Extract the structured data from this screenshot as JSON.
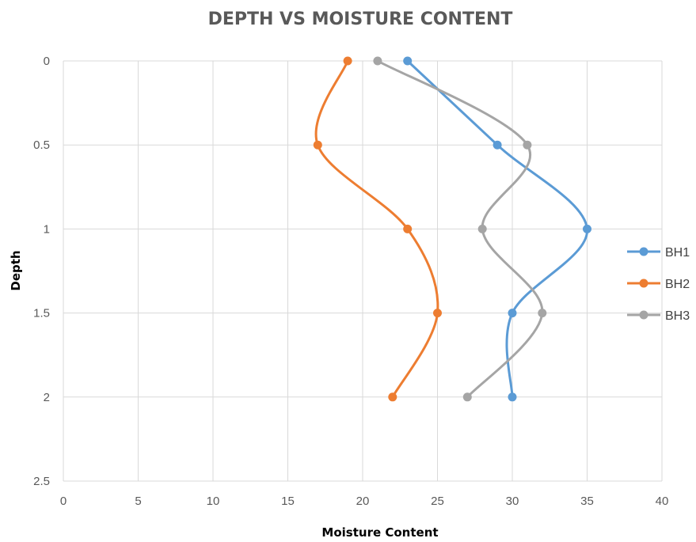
{
  "chart_data": {
    "type": "scatter",
    "title": "DEPTH VS MOISTURE CONTENT",
    "xlabel": "Moisture Content",
    "ylabel": "Depth",
    "xlim": [
      0,
      40
    ],
    "ylim": [
      0,
      2.5
    ],
    "y_inverted": true,
    "x_ticks": [
      "0",
      "5",
      "10",
      "15",
      "20",
      "25",
      "30",
      "35",
      "40"
    ],
    "y_ticks": [
      "0",
      "0.5",
      "1",
      "1.5",
      "2",
      "2.5"
    ],
    "grid": true,
    "smooth_lines": true,
    "legend_position": "right",
    "series": [
      {
        "name": "BH1",
        "color": "#5b9bd5",
        "x": [
          23,
          29,
          35,
          30,
          30
        ],
        "y": [
          0,
          0.5,
          1,
          1.5,
          2
        ]
      },
      {
        "name": "BH2",
        "color": "#ed7d31",
        "x": [
          19,
          17,
          23,
          25,
          22
        ],
        "y": [
          0,
          0.5,
          1,
          1.5,
          2
        ]
      },
      {
        "name": "BH3",
        "color": "#a5a5a5",
        "x": [
          21,
          31,
          28,
          32,
          27
        ],
        "y": [
          0,
          0.5,
          1,
          1.5,
          2
        ]
      }
    ]
  }
}
